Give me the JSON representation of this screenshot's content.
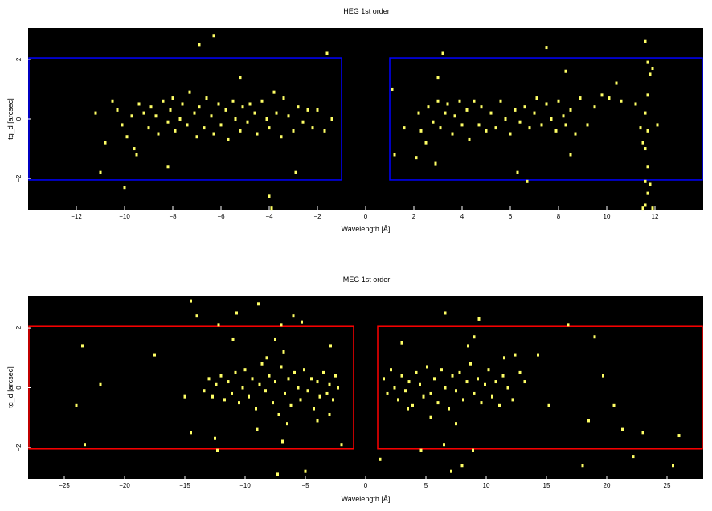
{
  "chart_data": [
    {
      "type": "scatter",
      "title": "HEG 1st order",
      "xlabel": "Wavelength [Å]",
      "ylabel": "tg_d [arcsec]",
      "xlim": [
        -14,
        14
      ],
      "ylim": [
        -3.05,
        3.05
      ],
      "xticks": [
        -12,
        -10,
        -8,
        -6,
        -4,
        -2,
        0,
        2,
        4,
        6,
        8,
        10,
        12
      ],
      "xtick_labels": [
        "−12",
        "−10",
        "−8",
        "−6",
        "−4",
        "−2",
        "0",
        "2",
        "4",
        "6",
        "8",
        "10",
        "12"
      ],
      "yticks": [
        -2,
        0,
        2
      ],
      "ytick_labels": [
        "−2",
        "0",
        "2"
      ],
      "background": "#000000",
      "point_color": "#ffff66",
      "region_color": "#0000ff",
      "regions": [
        {
          "x": [
            -14,
            -1
          ],
          "y": [
            -2.05,
            2.05
          ]
        },
        {
          "x": [
            1,
            14
          ],
          "y": [
            -2.05,
            2.05
          ]
        }
      ],
      "grid": false,
      "points": [
        [
          -11.2,
          0.2
        ],
        [
          -10.8,
          -0.8
        ],
        [
          -10.5,
          0.6
        ],
        [
          -10.3,
          0.3
        ],
        [
          -10.1,
          -0.2
        ],
        [
          -9.9,
          -0.6
        ],
        [
          -9.7,
          0.1
        ],
        [
          -9.6,
          -1.0
        ],
        [
          -9.4,
          0.5
        ],
        [
          -9.2,
          0.2
        ],
        [
          -9.0,
          -0.3
        ],
        [
          -8.9,
          0.4
        ],
        [
          -8.7,
          0.1
        ],
        [
          -8.6,
          -0.5
        ],
        [
          -8.4,
          0.6
        ],
        [
          -8.2,
          -0.1
        ],
        [
          -8.1,
          0.3
        ],
        [
          -8.0,
          0.7
        ],
        [
          -7.9,
          -0.4
        ],
        [
          -7.7,
          0.0
        ],
        [
          -7.6,
          0.5
        ],
        [
          -7.4,
          -0.2
        ],
        [
          -7.3,
          0.9
        ],
        [
          -7.1,
          0.2
        ],
        [
          -7.0,
          -0.6
        ],
        [
          -6.9,
          0.4
        ],
        [
          -6.7,
          -0.3
        ],
        [
          -6.6,
          0.7
        ],
        [
          -6.4,
          0.1
        ],
        [
          -6.3,
          -0.5
        ],
        [
          -6.1,
          0.5
        ],
        [
          -6.0,
          -0.2
        ],
        [
          -5.8,
          0.3
        ],
        [
          -5.7,
          -0.7
        ],
        [
          -5.5,
          0.6
        ],
        [
          -5.4,
          0.0
        ],
        [
          -5.2,
          -0.4
        ],
        [
          -5.1,
          0.4
        ],
        [
          -4.9,
          -0.1
        ],
        [
          -4.8,
          0.5
        ],
        [
          -4.6,
          0.2
        ],
        [
          -4.5,
          -0.5
        ],
        [
          -4.3,
          0.6
        ],
        [
          -4.1,
          0.0
        ],
        [
          -4.0,
          -0.3
        ],
        [
          -3.8,
          0.9
        ],
        [
          -3.7,
          0.2
        ],
        [
          -3.5,
          -0.6
        ],
        [
          -3.4,
          0.7
        ],
        [
          -3.2,
          0.1
        ],
        [
          -3.0,
          -0.4
        ],
        [
          -2.8,
          0.4
        ],
        [
          -2.6,
          -0.1
        ],
        [
          -2.4,
          0.3
        ],
        [
          -2.2,
          -0.3
        ],
        [
          -2.0,
          0.3
        ],
        [
          -1.7,
          -0.4
        ],
        [
          -1.4,
          0.0
        ],
        [
          -9.5,
          -1.2
        ],
        [
          -10.0,
          -2.3
        ],
        [
          -8.2,
          -1.6
        ],
        [
          -6.9,
          2.5
        ],
        [
          -6.3,
          2.8
        ],
        [
          -5.2,
          1.4
        ],
        [
          -4.0,
          -2.6
        ],
        [
          -3.9,
          -3.0
        ],
        [
          -2.9,
          -1.8
        ],
        [
          -1.6,
          2.2
        ],
        [
          -11.0,
          -1.8
        ],
        [
          1.1,
          1.0
        ],
        [
          1.2,
          -1.2
        ],
        [
          1.6,
          -0.3
        ],
        [
          2.1,
          -1.3
        ],
        [
          2.2,
          0.2
        ],
        [
          2.3,
          -0.4
        ],
        [
          2.5,
          -0.8
        ],
        [
          2.6,
          0.4
        ],
        [
          2.8,
          -0.1
        ],
        [
          2.9,
          -1.5
        ],
        [
          3.0,
          0.6
        ],
        [
          3.1,
          -0.3
        ],
        [
          3.3,
          0.2
        ],
        [
          3.4,
          0.5
        ],
        [
          3.6,
          -0.5
        ],
        [
          3.7,
          0.1
        ],
        [
          3.9,
          0.6
        ],
        [
          4.0,
          -0.2
        ],
        [
          4.2,
          0.3
        ],
        [
          4.3,
          -0.7
        ],
        [
          4.5,
          0.6
        ],
        [
          4.7,
          -0.2
        ],
        [
          4.8,
          0.4
        ],
        [
          5.0,
          -0.4
        ],
        [
          5.2,
          0.2
        ],
        [
          5.4,
          -0.3
        ],
        [
          5.6,
          0.6
        ],
        [
          5.8,
          0.0
        ],
        [
          6.0,
          -0.5
        ],
        [
          6.2,
          0.3
        ],
        [
          6.4,
          -0.1
        ],
        [
          6.6,
          0.4
        ],
        [
          6.8,
          -0.3
        ],
        [
          7.0,
          0.2
        ],
        [
          7.1,
          0.7
        ],
        [
          7.3,
          -0.2
        ],
        [
          7.5,
          0.5
        ],
        [
          7.7,
          0.0
        ],
        [
          7.9,
          -0.4
        ],
        [
          8.0,
          0.6
        ],
        [
          8.2,
          0.1
        ],
        [
          8.3,
          -0.2
        ],
        [
          8.5,
          0.3
        ],
        [
          8.7,
          -0.5
        ],
        [
          8.9,
          0.7
        ],
        [
          9.2,
          -0.2
        ],
        [
          9.5,
          0.4
        ],
        [
          9.8,
          0.8
        ],
        [
          10.1,
          0.7
        ],
        [
          10.6,
          0.6
        ],
        [
          11.2,
          0.5
        ],
        [
          3.2,
          2.2
        ],
        [
          3.0,
          1.4
        ],
        [
          6.3,
          -1.8
        ],
        [
          6.7,
          -2.1
        ],
        [
          7.5,
          2.4
        ],
        [
          8.3,
          1.6
        ],
        [
          8.5,
          -1.2
        ],
        [
          10.4,
          1.2
        ],
        [
          11.6,
          2.6
        ],
        [
          11.7,
          1.9
        ],
        [
          11.8,
          1.5
        ],
        [
          11.7,
          0.8
        ],
        [
          11.6,
          0.2
        ],
        [
          11.7,
          -0.4
        ],
        [
          11.6,
          -1.0
        ],
        [
          11.7,
          -1.6
        ],
        [
          11.6,
          -2.1
        ],
        [
          11.7,
          -2.5
        ],
        [
          11.6,
          -2.9
        ],
        [
          11.8,
          -2.2
        ],
        [
          11.5,
          -0.8
        ],
        [
          11.4,
          -0.3
        ],
        [
          11.9,
          1.7
        ],
        [
          12.1,
          -0.2
        ],
        [
          11.9,
          -3.0
        ],
        [
          11.5,
          -3.0
        ]
      ]
    },
    {
      "type": "scatter",
      "title": "MEG 1st order",
      "xlabel": "Wavelength [Å]",
      "ylabel": "tg_d [arcsec]",
      "xlim": [
        -28,
        28
      ],
      "ylim": [
        -3.05,
        3.05
      ],
      "xticks": [
        -25,
        -20,
        -15,
        -10,
        -5,
        0,
        5,
        10,
        15,
        20,
        25
      ],
      "xtick_labels": [
        "−25",
        "−20",
        "−15",
        "−10",
        "−5",
        "0",
        "5",
        "10",
        "15",
        "20",
        "25"
      ],
      "yticks": [
        -2,
        0,
        2
      ],
      "ytick_labels": [
        "−2",
        "0",
        "2"
      ],
      "background": "#000000",
      "point_color": "#ffff66",
      "region_color": "#ff0000",
      "regions": [
        {
          "x": [
            -28,
            -1
          ],
          "y": [
            -2.05,
            2.05
          ]
        },
        {
          "x": [
            1,
            28
          ],
          "y": [
            -2.05,
            2.05
          ]
        }
      ],
      "grid": false,
      "points": [
        [
          -13.4,
          -0.1
        ],
        [
          -13.0,
          0.3
        ],
        [
          -12.7,
          -0.3
        ],
        [
          -12.4,
          0.1
        ],
        [
          -12.0,
          0.4
        ],
        [
          -11.7,
          -0.4
        ],
        [
          -11.4,
          0.2
        ],
        [
          -11.1,
          -0.2
        ],
        [
          -10.8,
          0.5
        ],
        [
          -10.5,
          -0.5
        ],
        [
          -10.2,
          0.0
        ],
        [
          -10.0,
          0.6
        ],
        [
          -9.7,
          -0.3
        ],
        [
          -9.4,
          0.3
        ],
        [
          -9.1,
          -0.7
        ],
        [
          -8.8,
          0.1
        ],
        [
          -8.6,
          0.8
        ],
        [
          -8.3,
          -0.1
        ],
        [
          -8.0,
          0.4
        ],
        [
          -7.7,
          -0.5
        ],
        [
          -7.5,
          0.2
        ],
        [
          -7.2,
          -0.9
        ],
        [
          -7.0,
          0.7
        ],
        [
          -6.7,
          -0.2
        ],
        [
          -6.4,
          0.3
        ],
        [
          -6.2,
          -0.6
        ],
        [
          -5.9,
          0.5
        ],
        [
          -5.6,
          0.0
        ],
        [
          -5.4,
          -0.4
        ],
        [
          -5.1,
          0.6
        ],
        [
          -4.8,
          -0.1
        ],
        [
          -4.5,
          0.3
        ],
        [
          -4.3,
          -0.7
        ],
        [
          -4.0,
          0.2
        ],
        [
          -3.8,
          -0.3
        ],
        [
          -3.5,
          0.5
        ],
        [
          -3.2,
          -0.2
        ],
        [
          -3.0,
          0.1
        ],
        [
          -2.7,
          -0.4
        ],
        [
          -2.5,
          0.4
        ],
        [
          -2.3,
          0.0
        ],
        [
          -7.5,
          1.6
        ],
        [
          -7.0,
          2.1
        ],
        [
          -6.8,
          1.2
        ],
        [
          -8.2,
          1.0
        ],
        [
          -9.0,
          -1.4
        ],
        [
          -7.3,
          -2.9
        ],
        [
          -6.9,
          -1.8
        ],
        [
          -12.5,
          -1.7
        ],
        [
          -12.2,
          2.1
        ],
        [
          -11.0,
          1.6
        ],
        [
          -14.0,
          2.4
        ],
        [
          -14.5,
          2.9
        ],
        [
          -10.7,
          2.5
        ],
        [
          -6.0,
          2.4
        ],
        [
          -6.5,
          -1.2
        ],
        [
          -4.0,
          -1.1
        ],
        [
          -3.0,
          -0.9
        ],
        [
          -2.0,
          -1.9
        ],
        [
          -2.9,
          1.4
        ],
        [
          -22.0,
          0.1
        ],
        [
          -23.5,
          1.4
        ],
        [
          -24.0,
          -0.6
        ],
        [
          -23.3,
          -1.9
        ],
        [
          -17.5,
          1.1
        ],
        [
          -15.0,
          -0.3
        ],
        [
          -14.5,
          -1.5
        ],
        [
          -12.3,
          -2.1
        ],
        [
          -5.0,
          -2.8
        ],
        [
          -8.9,
          2.8
        ],
        [
          -5.3,
          2.2
        ],
        [
          1.5,
          0.3
        ],
        [
          1.8,
          -0.2
        ],
        [
          2.1,
          0.6
        ],
        [
          2.4,
          0.0
        ],
        [
          2.7,
          -0.4
        ],
        [
          3.0,
          0.4
        ],
        [
          3.3,
          -0.1
        ],
        [
          3.6,
          0.2
        ],
        [
          3.9,
          -0.6
        ],
        [
          4.2,
          0.5
        ],
        [
          4.5,
          0.1
        ],
        [
          4.8,
          -0.3
        ],
        [
          5.1,
          0.7
        ],
        [
          5.4,
          -0.2
        ],
        [
          5.7,
          0.3
        ],
        [
          6.0,
          -0.5
        ],
        [
          6.3,
          0.6
        ],
        [
          6.6,
          0.0
        ],
        [
          6.9,
          -0.7
        ],
        [
          7.2,
          0.4
        ],
        [
          7.5,
          -0.1
        ],
        [
          7.8,
          0.5
        ],
        [
          8.1,
          -0.4
        ],
        [
          8.4,
          0.2
        ],
        [
          8.7,
          0.8
        ],
        [
          9.0,
          -0.2
        ],
        [
          9.3,
          0.3
        ],
        [
          9.6,
          -0.5
        ],
        [
          9.9,
          0.1
        ],
        [
          10.2,
          0.6
        ],
        [
          10.5,
          -0.3
        ],
        [
          10.8,
          0.2
        ],
        [
          11.1,
          -0.6
        ],
        [
          11.4,
          0.4
        ],
        [
          11.8,
          0.0
        ],
        [
          12.2,
          -0.4
        ],
        [
          12.8,
          0.5
        ],
        [
          13.2,
          0.2
        ],
        [
          8.5,
          1.4
        ],
        [
          9.0,
          1.7
        ],
        [
          9.4,
          2.3
        ],
        [
          6.5,
          -1.9
        ],
        [
          7.5,
          -1.2
        ],
        [
          8.0,
          -2.6
        ],
        [
          8.9,
          -2.1
        ],
        [
          6.6,
          2.5
        ],
        [
          11.5,
          1.0
        ],
        [
          12.4,
          1.1
        ],
        [
          14.3,
          1.1
        ],
        [
          15.2,
          -0.6
        ],
        [
          16.8,
          2.1
        ],
        [
          18.0,
          -2.6
        ],
        [
          18.5,
          -1.1
        ],
        [
          19.0,
          1.7
        ],
        [
          19.7,
          0.4
        ],
        [
          20.6,
          -0.6
        ],
        [
          21.3,
          -1.4
        ],
        [
          22.2,
          -2.3
        ],
        [
          23.0,
          -1.5
        ],
        [
          25.5,
          -2.6
        ],
        [
          26.0,
          -1.6
        ],
        [
          3.5,
          -0.7
        ],
        [
          1.2,
          -2.4
        ],
        [
          4.6,
          -2.1
        ],
        [
          5.4,
          -1.0
        ],
        [
          3.0,
          1.5
        ],
        [
          7.1,
          -2.8
        ]
      ]
    }
  ]
}
